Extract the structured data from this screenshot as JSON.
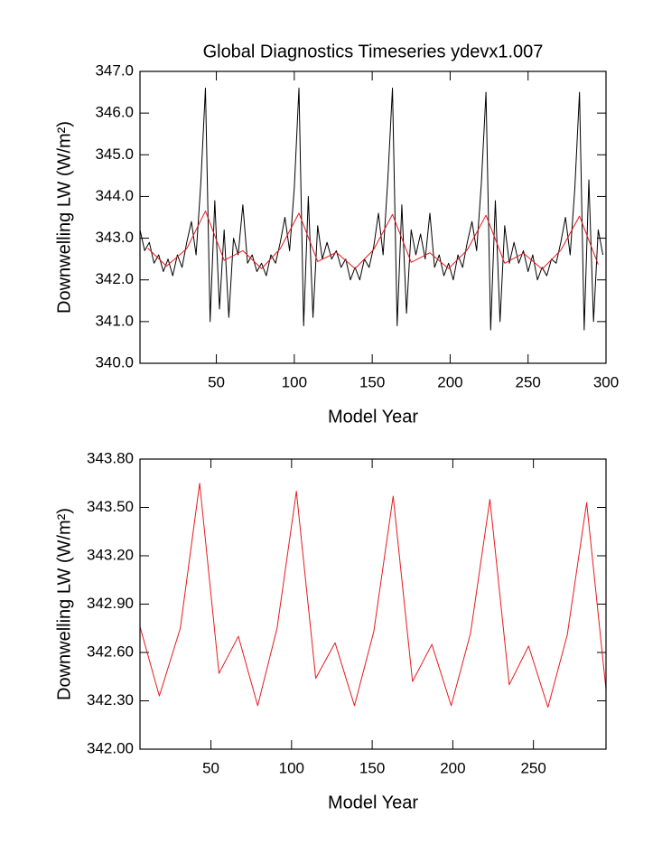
{
  "chart_data": [
    {
      "type": "line",
      "title": "Global Diagnostics Timeseries ydevx1.007",
      "xlabel": "Model Year",
      "ylabel": "Downwelling LW (W/m²)",
      "xlim": [
        1,
        300
      ],
      "xticks": [
        50,
        100,
        150,
        200,
        250,
        300
      ],
      "ylim": [
        340,
        347
      ],
      "yticks": [
        {
          "value": 340,
          "label": "340.0"
        },
        {
          "value": 341,
          "label": "341.0"
        },
        {
          "value": 342,
          "label": "342.0"
        },
        {
          "value": 343,
          "label": "343.0"
        },
        {
          "value": 344,
          "label": "344.0"
        },
        {
          "value": 345,
          "label": "345.0"
        },
        {
          "value": 346,
          "label": "346.0"
        },
        {
          "value": 347,
          "label": "347.0"
        }
      ],
      "series": [
        {
          "color": "#000000",
          "x": [
            1,
            4,
            7,
            10,
            13,
            16,
            19,
            22,
            25,
            28,
            31,
            34,
            37,
            40,
            43,
            46,
            49,
            52,
            55,
            58,
            61,
            64,
            67,
            70,
            73,
            76,
            79,
            82,
            85,
            88,
            91,
            94,
            97,
            100,
            103,
            106,
            109,
            112,
            115,
            118,
            121,
            124,
            127,
            130,
            133,
            136,
            139,
            142,
            145,
            148,
            151,
            154,
            157,
            160,
            163,
            166,
            169,
            172,
            175,
            178,
            181,
            184,
            187,
            190,
            193,
            196,
            199,
            202,
            205,
            208,
            211,
            214,
            217,
            220,
            223,
            226,
            229,
            232,
            235,
            238,
            241,
            244,
            247,
            250,
            253,
            256,
            259,
            262,
            265,
            268,
            271,
            274,
            277,
            280,
            283,
            286,
            289,
            292,
            295,
            298
          ],
          "values": [
            343.2,
            342.7,
            342.9,
            342.4,
            342.6,
            342.2,
            342.5,
            342.1,
            342.6,
            342.3,
            342.9,
            343.4,
            342.6,
            344.3,
            346.6,
            341.0,
            343.9,
            341.3,
            343.2,
            341.1,
            343.0,
            342.6,
            343.8,
            342.4,
            342.6,
            342.2,
            342.4,
            342.1,
            342.6,
            342.4,
            342.9,
            343.5,
            342.7,
            344.2,
            346.6,
            340.9,
            344.0,
            341.1,
            343.3,
            342.5,
            342.9,
            342.5,
            342.7,
            342.3,
            342.5,
            342.0,
            342.3,
            342.0,
            342.5,
            342.3,
            342.8,
            343.6,
            342.6,
            344.4,
            346.6,
            340.9,
            343.8,
            341.2,
            343.2,
            342.6,
            343.1,
            342.5,
            343.6,
            342.3,
            342.6,
            342.1,
            342.4,
            342.0,
            342.6,
            342.3,
            342.9,
            343.4,
            342.7,
            344.3,
            346.5,
            340.8,
            343.9,
            341.0,
            343.3,
            342.4,
            342.9,
            342.4,
            342.7,
            342.2,
            342.6,
            342.0,
            342.3,
            342.1,
            342.5,
            342.4,
            342.9,
            343.5,
            342.6,
            344.2,
            346.5,
            340.8,
            344.4,
            341.0,
            343.2,
            342.6
          ]
        },
        {
          "color": "#e8191e",
          "x": [
            6,
            18,
            31,
            43,
            55,
            67,
            79,
            91,
            103,
            115,
            127,
            139,
            151,
            163,
            175,
            187,
            199,
            211,
            223,
            235,
            247,
            259,
            271,
            283,
            295
          ],
          "values": [
            342.76,
            342.33,
            342.75,
            343.65,
            342.47,
            342.7,
            342.27,
            342.75,
            343.6,
            342.44,
            342.66,
            342.27,
            342.73,
            343.57,
            342.42,
            342.65,
            342.27,
            342.72,
            343.55,
            342.4,
            342.64,
            342.26,
            342.71,
            343.53,
            342.37
          ]
        }
      ]
    },
    {
      "type": "line",
      "xlabel": "Model Year",
      "ylabel": "Downwelling LW (W/m²)",
      "xlim": [
        6,
        295
      ],
      "xticks": [
        50,
        100,
        150,
        200,
        250
      ],
      "ylim": [
        342,
        343.8
      ],
      "yticks": [
        {
          "value": 342,
          "label": "342.00"
        },
        {
          "value": 342.3,
          "label": "342.30"
        },
        {
          "value": 342.6,
          "label": "342.60"
        },
        {
          "value": 342.9,
          "label": "342.90"
        },
        {
          "value": 343.2,
          "label": "343.20"
        },
        {
          "value": 343.5,
          "label": "343.50"
        },
        {
          "value": 343.8,
          "label": "343.80"
        }
      ],
      "series": [
        {
          "color": "#e8191e",
          "x": [
            6,
            18,
            31,
            43,
            55,
            67,
            79,
            91,
            103,
            115,
            127,
            139,
            151,
            163,
            175,
            187,
            199,
            211,
            223,
            235,
            247,
            259,
            271,
            283,
            295
          ],
          "values": [
            342.76,
            342.33,
            342.75,
            343.65,
            342.47,
            342.7,
            342.27,
            342.75,
            343.6,
            342.44,
            342.66,
            342.27,
            342.73,
            343.57,
            342.42,
            342.65,
            342.27,
            342.72,
            343.55,
            342.4,
            342.64,
            342.26,
            342.71,
            343.53,
            342.37
          ]
        }
      ]
    }
  ]
}
